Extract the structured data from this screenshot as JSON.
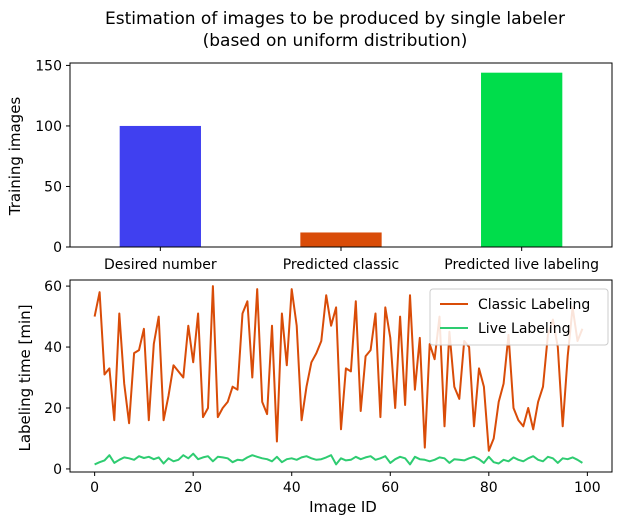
{
  "chart_data": [
    {
      "type": "bar",
      "title": "Estimation of images to be produced by single labeler",
      "subtitle": "(based on uniform distribution)",
      "xlabel": "",
      "ylabel": "Training images",
      "categories": [
        "Desired number",
        "Predicted classic",
        "Predicted live labeling"
      ],
      "values": [
        100,
        12,
        144
      ],
      "colors": [
        "#4040f0",
        "#d94c08",
        "#00dd4b"
      ],
      "ylim": [
        0,
        152
      ],
      "yticks": [
        0,
        50,
        100,
        150
      ],
      "grid": false
    },
    {
      "type": "line",
      "title": "",
      "xlabel": "Image ID",
      "ylabel": "Labeling time [min]",
      "xlim": [
        -5,
        105
      ],
      "ylim": [
        -1,
        62
      ],
      "xticks": [
        0,
        20,
        40,
        60,
        80,
        100
      ],
      "yticks": [
        0,
        20,
        40,
        60
      ],
      "grid": false,
      "legend_position": "top-right",
      "x": [
        0,
        1,
        2,
        3,
        4,
        5,
        6,
        7,
        8,
        9,
        10,
        11,
        12,
        13,
        14,
        15,
        16,
        17,
        18,
        19,
        20,
        21,
        22,
        23,
        24,
        25,
        26,
        27,
        28,
        29,
        30,
        31,
        32,
        33,
        34,
        35,
        36,
        37,
        38,
        39,
        40,
        41,
        42,
        43,
        44,
        45,
        46,
        47,
        48,
        49,
        50,
        51,
        52,
        53,
        54,
        55,
        56,
        57,
        58,
        59,
        60,
        61,
        62,
        63,
        64,
        65,
        66,
        67,
        68,
        69,
        70,
        71,
        72,
        73,
        74,
        75,
        76,
        77,
        78,
        79,
        80,
        81,
        82,
        83,
        84,
        85,
        86,
        87,
        88,
        89,
        90,
        91,
        92,
        93,
        94,
        95,
        96,
        97,
        98,
        99
      ],
      "series": [
        {
          "name": "Classic Labeling",
          "color": "#d94c08",
          "values": [
            50,
            58,
            31,
            33,
            16,
            51,
            28,
            15,
            38,
            39,
            46,
            16,
            41,
            50,
            16,
            24,
            34,
            32,
            30,
            47,
            35,
            51,
            17,
            20,
            60,
            17,
            20,
            22,
            27,
            26,
            51,
            55,
            30,
            59,
            22,
            18,
            47,
            9,
            51,
            34,
            59,
            47,
            16,
            27,
            35,
            38,
            42,
            57,
            47,
            53,
            13,
            33,
            32,
            55,
            19,
            37,
            39,
            51,
            17,
            53,
            43,
            20,
            50,
            21,
            57,
            26,
            43,
            7,
            41,
            36,
            50,
            14,
            45,
            27,
            23,
            42,
            40,
            14,
            33,
            27,
            6,
            10,
            22,
            28,
            44,
            20,
            16,
            14,
            20,
            13,
            22,
            27,
            44,
            49,
            40,
            14,
            37,
            53,
            42,
            46
          ]
        },
        {
          "name": "Live Labeling",
          "color": "#2ecc71",
          "values": [
            1.5,
            2.2,
            2.8,
            4.5,
            2.0,
            3.0,
            3.8,
            3.5,
            3.0,
            4.2,
            3.6,
            4.0,
            3.2,
            3.8,
            1.8,
            3.5,
            2.5,
            3.0,
            4.5,
            3.5,
            5.0,
            3.2,
            3.8,
            4.2,
            2.5,
            4.0,
            3.8,
            3.5,
            2.2,
            3.0,
            2.8,
            3.8,
            4.5,
            4.0,
            3.5,
            3.2,
            2.5,
            4.0,
            2.2,
            3.2,
            3.5,
            3.0,
            3.8,
            4.2,
            3.5,
            3.0,
            3.2,
            3.8,
            4.5,
            1.5,
            3.5,
            2.8,
            3.0,
            4.0,
            3.2,
            3.8,
            4.2,
            3.0,
            3.5,
            4.2,
            2.0,
            3.2,
            4.0,
            3.5,
            1.5,
            4.0,
            3.2,
            3.0,
            2.5,
            3.0,
            3.8,
            3.5,
            2.0,
            3.2,
            3.0,
            2.8,
            3.5,
            4.0,
            3.2,
            2.0,
            4.0,
            2.2,
            1.8,
            3.0,
            2.5,
            3.8,
            3.0,
            2.5,
            3.5,
            4.2,
            3.0,
            2.5,
            4.0,
            3.5,
            2.0,
            3.5,
            3.2,
            3.8,
            3.0,
            2.0
          ]
        }
      ]
    }
  ]
}
